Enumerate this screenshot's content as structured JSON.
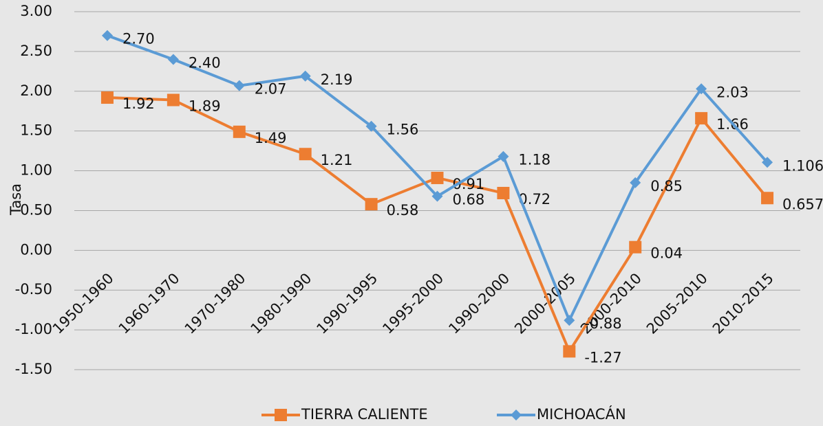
{
  "chart_data": {
    "type": "line",
    "y_label": "Tasa",
    "categories": [
      "1950-1960",
      "1960-1970",
      "1970-1980",
      "1980-1990",
      "1990-1995",
      "1995-2000",
      "1990-2000",
      "2000-2005",
      "2000-2010",
      "2005-2010",
      "2010-2015"
    ],
    "series": [
      {
        "name": "TIERRA CALIENTE",
        "color": "#ed7d31",
        "marker": "square",
        "values": [
          1.92,
          1.89,
          1.49,
          1.21,
          0.58,
          0.91,
          0.72,
          -1.27,
          0.04,
          1.66,
          0.657
        ],
        "value_labels": [
          "1.92",
          "1.89",
          "1.49",
          "1.21",
          "0.58",
          "0.91",
          "0.72",
          "-1.27",
          "0.04",
          "1.66",
          "0.657"
        ]
      },
      {
        "name": "MICHOACÁN",
        "color": "#5b9bd5",
        "marker": "diamond",
        "values": [
          2.7,
          2.4,
          2.07,
          2.19,
          1.56,
          0.68,
          1.18,
          -0.88,
          0.85,
          2.03,
          1.106
        ],
        "value_labels": [
          "2.70",
          "2.40",
          "2.07",
          "2.19",
          "1.56",
          "0.68",
          "1.18",
          "-0.88",
          "0.85",
          "2.03",
          "1.106"
        ]
      }
    ],
    "ylim": [
      -1.5,
      3
    ],
    "yticks": [
      {
        "value": -1.5,
        "label": "-1.50"
      },
      {
        "value": -1,
        "label": "-1.00"
      },
      {
        "value": -0.5,
        "label": "-0.50"
      },
      {
        "value": 0,
        "label": "0.00"
      },
      {
        "value": 0.5,
        "label": "0.50"
      },
      {
        "value": 1,
        "label": "1.00"
      },
      {
        "value": 1.5,
        "label": "1.50"
      },
      {
        "value": 2,
        "label": "2.00"
      },
      {
        "value": 2.5,
        "label": "2.50"
      },
      {
        "value": 3,
        "label": "3.00"
      }
    ],
    "grid": true,
    "legend": "bottom"
  }
}
